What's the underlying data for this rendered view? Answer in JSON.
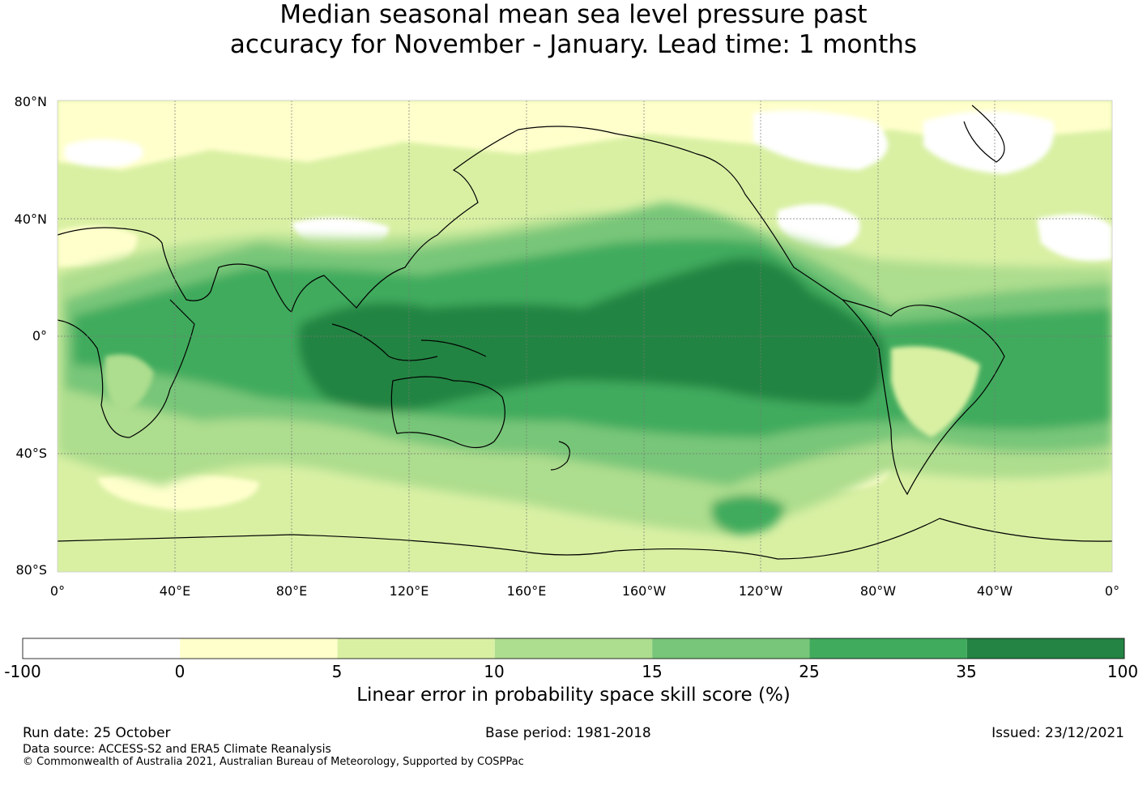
{
  "title": {
    "line1": "Median seasonal mean sea level pressure past",
    "line2": "accuracy for November - January. Lead time: 1 months"
  },
  "map": {
    "lat_labels": [
      "80°N",
      "40°N",
      "0°",
      "40°S",
      "80°S"
    ],
    "lon_labels": [
      "0°",
      "40°E",
      "80°E",
      "120°E",
      "160°E",
      "160°W",
      "120°W",
      "80°W",
      "40°W",
      "0°"
    ]
  },
  "colorbar": {
    "ticks": [
      "-100",
      "0",
      "5",
      "10",
      "15",
      "25",
      "35",
      "100"
    ],
    "colors": [
      "#ffffff",
      "#ffffcc",
      "#d9f0a3",
      "#addd8e",
      "#78c679",
      "#41ab5d",
      "#238443"
    ],
    "label": "Linear error in probability space skill score (%)"
  },
  "footer": {
    "run_date": "Run date: 25 October",
    "base_period": "Base period: 1981-2018",
    "issued": "Issued: 23/12/2021",
    "data_source": "Data source: ACCESS-S2 and ERA5 Climate Reanalysis",
    "copyright": "© Commonwealth of Australia 2021, Australian Bureau of Meteorology, Supported by COSPPac"
  }
}
